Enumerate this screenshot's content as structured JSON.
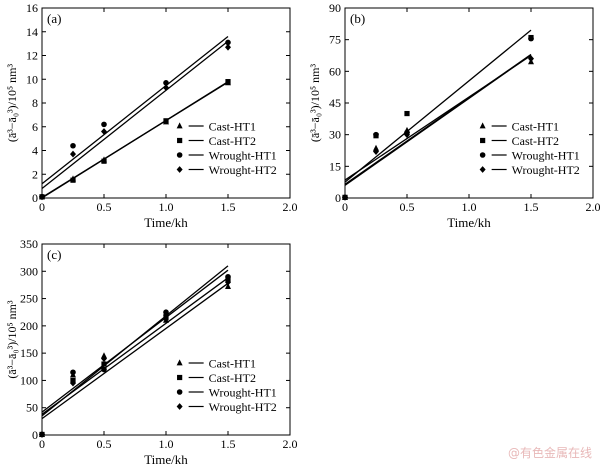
{
  "watermark": "@有色金属在线",
  "chart_data": [
    {
      "type": "scatter",
      "panel_label": "(a)",
      "xlabel": "Time/kh",
      "ylabel": "(ā³−ā₀³)/10⁵ nm³",
      "xlim": [
        0,
        2.0
      ],
      "ylim": [
        0,
        16
      ],
      "xticks": [
        "0",
        "0.5",
        "1.0",
        "1.5",
        "2.0"
      ],
      "yticks": [
        "0",
        "2",
        "4",
        "6",
        "8",
        "10",
        "12",
        "14",
        "16"
      ],
      "legend_position": "bottom-right",
      "series": [
        {
          "name": "Cast-HT1",
          "marker": "triangle",
          "x": [
            0,
            0.25,
            0.5,
            1.0,
            1.5
          ],
          "y": [
            0.1,
            1.6,
            3.2,
            6.4,
            9.7
          ],
          "fit": [
            [
              0,
              0.0
            ],
            [
              1.5,
              9.8
            ]
          ]
        },
        {
          "name": "Cast-HT2",
          "marker": "square",
          "x": [
            0,
            0.25,
            0.5,
            1.0,
            1.5
          ],
          "y": [
            0.1,
            1.5,
            3.1,
            6.5,
            9.8
          ],
          "fit": [
            [
              0,
              0.05
            ],
            [
              1.5,
              9.75
            ]
          ]
        },
        {
          "name": "Wrought-HT1",
          "marker": "circle",
          "x": [
            0,
            0.25,
            0.5,
            1.0,
            1.5
          ],
          "y": [
            0.1,
            4.4,
            6.2,
            9.7,
            13.1
          ],
          "fit": [
            [
              0,
              1.2
            ],
            [
              1.5,
              13.6
            ]
          ]
        },
        {
          "name": "Wrought-HT2",
          "marker": "diamond",
          "x": [
            0,
            0.25,
            0.5,
            1.0,
            1.5
          ],
          "y": [
            0.1,
            3.7,
            5.6,
            9.3,
            12.7
          ],
          "fit": [
            [
              0,
              0.8
            ],
            [
              1.5,
              13.2
            ]
          ]
        }
      ]
    },
    {
      "type": "scatter",
      "panel_label": "(b)",
      "xlabel": "Time/kh",
      "ylabel": "(ā³−ā₀³)/10⁵ nm³",
      "xlim": [
        0,
        2.0
      ],
      "ylim": [
        0,
        90
      ],
      "xticks": [
        "0",
        "0.5",
        "1.0",
        "1.5",
        "2.0"
      ],
      "yticks": [
        "0",
        "15",
        "30",
        "45",
        "60",
        "75",
        "90"
      ],
      "legend_position": "bottom-right",
      "series": [
        {
          "name": "Cast-HT1",
          "marker": "triangle",
          "x": [
            0,
            0.25,
            0.5,
            1.5
          ],
          "y": [
            0.3,
            23.5,
            32,
            64.5
          ],
          "fit": [
            [
              0,
              8.5
            ],
            [
              1.5,
              67.5
            ]
          ]
        },
        {
          "name": "Cast-HT2",
          "marker": "square",
          "x": [
            0,
            0.25,
            0.5,
            1.5
          ],
          "y": [
            0.3,
            29.5,
            40,
            76
          ],
          "fit": [
            [
              0,
              7.5
            ],
            [
              1.5,
              79.5
            ]
          ]
        },
        {
          "name": "Wrought-HT1",
          "marker": "circle",
          "x": [
            0,
            0.25,
            0.5,
            1.5
          ],
          "y": [
            0.3,
            30,
            31,
            75.5
          ],
          "fit": [
            [
              0,
              6.0
            ],
            [
              1.5,
              67.8
            ]
          ]
        },
        {
          "name": "Wrought-HT2",
          "marker": "diamond",
          "x": [
            0,
            0.25,
            0.5,
            1.5
          ],
          "y": [
            0.3,
            22,
            30,
            66
          ],
          "fit": [
            [
              0,
              6.5
            ],
            [
              1.5,
              68.0
            ]
          ]
        }
      ]
    },
    {
      "type": "scatter",
      "panel_label": "(c)",
      "xlabel": "Time/kh",
      "ylabel": "(ā³−ā₀³)/10⁵ nm³",
      "xlim": [
        0,
        2.0
      ],
      "ylim": [
        0,
        350
      ],
      "xticks": [
        "0",
        "0.5",
        "1.0",
        "1.5",
        "2.0"
      ],
      "yticks": [
        "0",
        "50",
        "100",
        "150",
        "200",
        "250",
        "300",
        "350"
      ],
      "legend_position": "bottom-right",
      "series": [
        {
          "name": "Cast-HT1",
          "marker": "triangle",
          "x": [
            0,
            0.25,
            0.5,
            1.0,
            1.5
          ],
          "y": [
            1,
            110,
            145,
            210,
            272
          ],
          "fit": [
            [
              0,
              30
            ],
            [
              1.5,
              278
            ]
          ]
        },
        {
          "name": "Cast-HT2",
          "marker": "square",
          "x": [
            0,
            0.25,
            0.5,
            1.0,
            1.5
          ],
          "y": [
            1,
            100,
            130,
            215,
            285
          ],
          "fit": [
            [
              0,
              38
            ],
            [
              1.5,
              288
            ]
          ]
        },
        {
          "name": "Wrought-HT1",
          "marker": "circle",
          "x": [
            0,
            0.25,
            0.5,
            1.0,
            1.5
          ],
          "y": [
            1,
            115,
            120,
            225,
            290
          ],
          "fit": [
            [
              0,
              42
            ],
            [
              1.5,
              302
            ]
          ]
        },
        {
          "name": "Wrought-HT2",
          "marker": "diamond",
          "x": [
            0,
            0.25,
            0.5,
            1.0,
            1.5
          ],
          "y": [
            1,
            95,
            140,
            220,
            280
          ],
          "fit": [
            [
              0,
              35
            ],
            [
              1.5,
              310
            ]
          ]
        }
      ]
    }
  ]
}
